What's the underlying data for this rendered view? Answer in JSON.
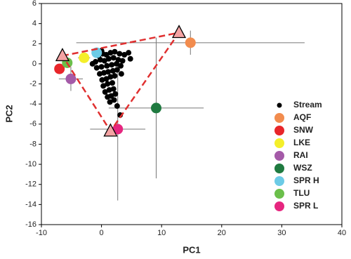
{
  "chart_data": {
    "type": "scatter",
    "xlabel": "PC1",
    "ylabel": "PC2",
    "xlim": [
      -10,
      40
    ],
    "ylim": [
      -16,
      6
    ],
    "xticks": [
      -10,
      0,
      10,
      20,
      30,
      40
    ],
    "yticks": [
      -16,
      -14,
      -12,
      -10,
      -8,
      -6,
      -4,
      -2,
      0,
      2,
      4,
      6
    ],
    "series": [
      {
        "name": "Stream",
        "color": "#000000",
        "x": [
          -0.5,
          0.2,
          0.8,
          1.5,
          2.2,
          3.0,
          3.8,
          4.5,
          -1.0,
          -0.2,
          0.5,
          1.2,
          2.0,
          2.8,
          3.5,
          -0.8,
          0.0,
          0.9,
          1.7,
          2.5,
          3.2,
          -0.3,
          0.4,
          1.1,
          1.9,
          2.6,
          0.1,
          0.8,
          1.5,
          2.2,
          0.3,
          1.0,
          1.8,
          0.6,
          1.3,
          2.0,
          1.0,
          1.6,
          2.3,
          1.4,
          2.1,
          2.6,
          3.1,
          0.0,
          4.8,
          -1.5,
          3.3
        ],
        "y": [
          0.8,
          1.0,
          0.9,
          1.1,
          1.2,
          1.0,
          0.9,
          1.1,
          0.2,
          0.4,
          0.3,
          0.5,
          0.6,
          0.4,
          0.3,
          -0.4,
          -0.3,
          -0.2,
          -0.1,
          0.0,
          -0.2,
          -1.0,
          -0.9,
          -0.8,
          -0.7,
          -0.6,
          -1.6,
          -1.5,
          -1.3,
          -1.2,
          -2.2,
          -2.0,
          -1.9,
          -2.8,
          -2.6,
          -2.5,
          -3.3,
          -3.2,
          -3.0,
          -3.8,
          -3.6,
          -4.2,
          -5.1,
          1.3,
          0.5,
          0.0,
          -1.0
        ]
      },
      {
        "name": "AQF",
        "color": "#f28c4e",
        "x": [
          14.8
        ],
        "y": [
          2.1
        ],
        "xerr": [
          19
        ],
        "yerr": [
          1.2
        ]
      },
      {
        "name": "SNW",
        "color": "#e8262a",
        "x": [
          -7.0
        ],
        "y": [
          -0.5
        ],
        "xerr": [
          0.6
        ],
        "yerr": [
          0.4
        ]
      },
      {
        "name": "LKE",
        "color": "#f4ef2a",
        "x": [
          -2.9
        ],
        "y": [
          0.6
        ],
        "xerr": [
          1.0
        ],
        "yerr": [
          0.4
        ]
      },
      {
        "name": "RAI",
        "color": "#a45aa8",
        "x": [
          -5.1
        ],
        "y": [
          -1.5
        ],
        "xerr": [
          2.0
        ],
        "yerr": [
          1.2
        ]
      },
      {
        "name": "WSZ",
        "color": "#1f7a40",
        "x": [
          9.1
        ],
        "y": [
          -4.4
        ],
        "xerr": [
          7.9
        ],
        "yerr": [
          7.0
        ]
      },
      {
        "name": "SPR H",
        "color": "#6ccbe6",
        "x": [
          -0.8
        ],
        "y": [
          1.1
        ],
        "xerr": [
          0.8
        ],
        "yerr": [
          0.4
        ]
      },
      {
        "name": "TLU",
        "color": "#6bbf4b",
        "x": [
          -5.7
        ],
        "y": [
          0.1
        ],
        "xerr": [
          0.6
        ],
        "yerr": [
          0.4
        ]
      },
      {
        "name": "SPR L",
        "color": "#e6267f",
        "x": [
          2.7
        ],
        "y": [
          -6.5
        ],
        "xerr": [
          4.6
        ],
        "yerr": [
          7.1
        ]
      }
    ],
    "end_members": {
      "color": "#f4a3a3",
      "line_color": "#e03030",
      "x": [
        -6.5,
        12.9,
        1.5
      ],
      "y": [
        0.8,
        3.1,
        -6.7
      ]
    }
  }
}
